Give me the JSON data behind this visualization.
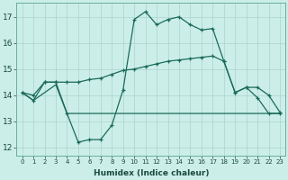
{
  "xlabel": "Humidex (Indice chaleur)",
  "background_color": "#cceee8",
  "line_color": "#1a6b5a",
  "grid_color": "#aad4cc",
  "xlim": [
    -0.5,
    23.5
  ],
  "ylim": [
    11.7,
    17.55
  ],
  "yticks": [
    12,
    13,
    14,
    15,
    16,
    17
  ],
  "xticks": [
    0,
    1,
    2,
    3,
    4,
    5,
    6,
    7,
    8,
    9,
    10,
    11,
    12,
    13,
    14,
    15,
    16,
    17,
    18,
    19,
    20,
    21,
    22,
    23
  ],
  "series1_x": [
    0,
    1,
    2,
    3,
    4,
    5,
    6,
    7,
    8,
    9,
    10,
    11,
    12,
    13,
    14,
    15,
    16,
    17,
    18,
    19,
    20,
    21,
    22,
    23
  ],
  "series1_y": [
    14.1,
    13.8,
    14.5,
    14.5,
    13.3,
    12.2,
    12.3,
    12.3,
    12.85,
    14.2,
    16.9,
    17.2,
    16.7,
    16.9,
    17.0,
    16.7,
    16.5,
    16.55,
    15.3,
    14.1,
    14.3,
    13.9,
    13.3,
    13.3
  ],
  "series2_x": [
    0,
    1,
    2,
    3,
    4,
    5,
    6,
    7,
    8,
    9,
    10,
    11,
    12,
    13,
    14,
    15,
    16,
    17,
    18,
    19,
    20,
    21,
    22,
    23
  ],
  "series2_y": [
    14.1,
    14.0,
    14.5,
    14.5,
    14.5,
    14.5,
    14.6,
    14.65,
    14.8,
    14.95,
    15.0,
    15.1,
    15.2,
    15.3,
    15.35,
    15.4,
    15.45,
    15.5,
    15.3,
    14.1,
    14.3,
    14.3,
    14.0,
    13.35
  ],
  "series3_x": [
    0,
    1,
    2,
    3,
    4,
    9,
    10,
    11,
    12,
    13,
    14,
    15,
    16,
    17,
    18,
    19,
    20,
    21,
    22,
    23
  ],
  "series3_y": [
    14.1,
    13.8,
    14.1,
    14.4,
    13.3,
    13.3,
    13.3,
    13.3,
    13.3,
    13.3,
    13.3,
    13.3,
    13.3,
    13.3,
    13.3,
    13.3,
    13.3,
    13.3,
    13.3,
    13.3
  ]
}
